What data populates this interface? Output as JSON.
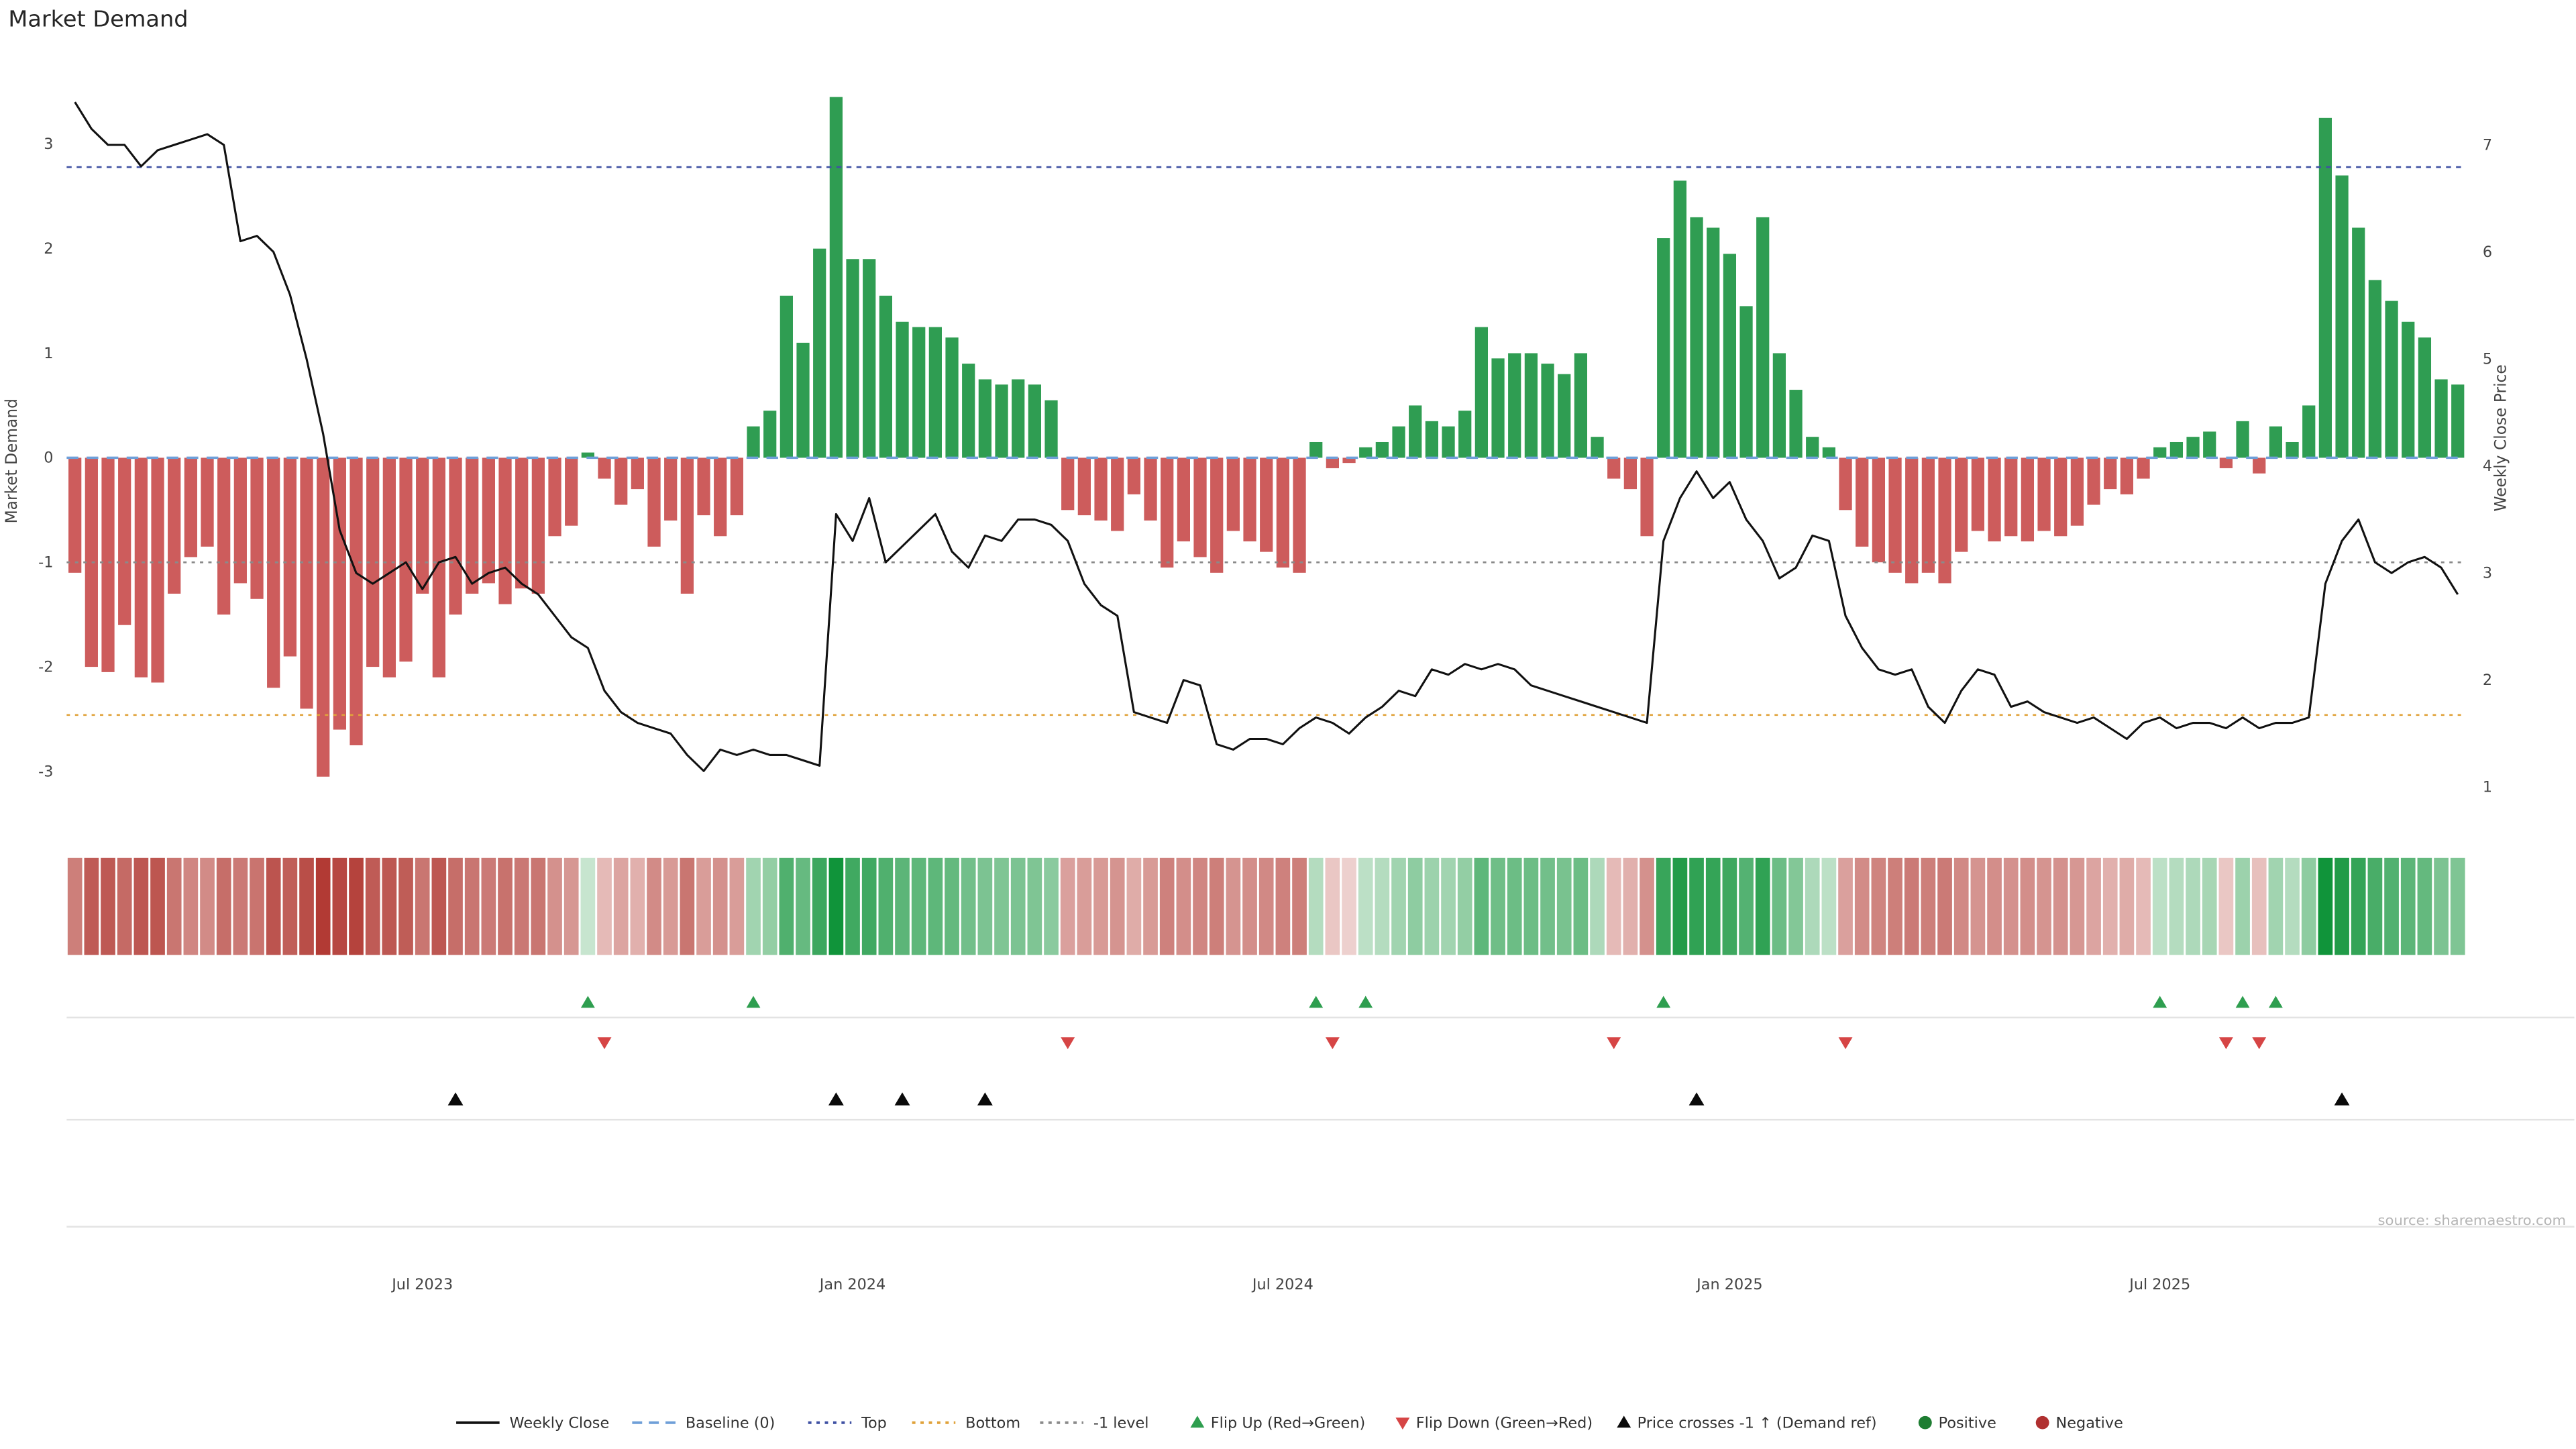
{
  "title": "Market Demand",
  "source": "source: sharemaestro.com",
  "axes": {
    "left_label": "Market Demand",
    "right_label": "Weekly Close Price",
    "left_ticks": [
      3,
      2,
      1,
      0,
      -1,
      -2,
      -3
    ],
    "right_ticks": [
      7,
      6,
      5,
      4,
      3,
      2,
      1
    ],
    "x_ticks": [
      {
        "label": "Jul 2023",
        "index": 21
      },
      {
        "label": "Jan 2024",
        "index": 47
      },
      {
        "label": "Jul 2024",
        "index": 73
      },
      {
        "label": "Jan 2025",
        "index": 100
      },
      {
        "label": "Jul 2025",
        "index": 126
      }
    ]
  },
  "colors": {
    "bar_positive": "#2f9d52",
    "bar_negative": "#cd5c5c",
    "price_line": "#111111",
    "baseline": "#6f9fd8",
    "top_level": "#3f51a3",
    "bottom_level": "#e0a23a",
    "minus1_level": "#8a8a8a",
    "flip_up": "#2e9e4f",
    "flip_down": "#d64545",
    "price_cross": "#0a0a0a",
    "positive_dot": "#1e7d32",
    "negative_dot": "#b03030",
    "grid": "#e3e3e3",
    "tick_text": "#444444",
    "heat_pos_low": [
      225,
      240,
      228
    ],
    "heat_pos_high": [
      16,
      148,
      58
    ],
    "heat_neg_low": [
      246,
      230,
      228
    ],
    "heat_neg_high": [
      176,
      54,
      48
    ]
  },
  "legend": {
    "items": [
      {
        "label": "Weekly Close",
        "type": "line",
        "color": "#111111",
        "dash": ""
      },
      {
        "label": "Baseline (0)",
        "type": "line",
        "color": "#6f9fd8",
        "dash": "6 4"
      },
      {
        "label": "Top",
        "type": "line",
        "color": "#3f51a3",
        "dash": "2 3"
      },
      {
        "label": "Bottom",
        "type": "line",
        "color": "#e0a23a",
        "dash": "2 3"
      },
      {
        "label": "-1 level",
        "type": "line",
        "color": "#8a8a8a",
        "dash": "2 3"
      },
      {
        "label": "Flip Up (Red→Green)",
        "type": "marker-up",
        "color": "#2e9e4f"
      },
      {
        "label": "Flip Down (Green→Red)",
        "type": "marker-down",
        "color": "#d64545"
      },
      {
        "label": "Price crosses -1 ↑ (Demand ref)",
        "type": "marker-up",
        "color": "#0a0a0a"
      },
      {
        "label": "Positive",
        "type": "dot",
        "color": "#1e7d32"
      },
      {
        "label": "Negative",
        "type": "dot",
        "color": "#b03030"
      }
    ]
  },
  "chart_data": {
    "type": "bar",
    "subtype": "bar+line combo with heatmap strip and event markers",
    "title": "Market Demand",
    "xlabel": "",
    "ylabel_left": "Market Demand",
    "ylabel_right": "Weekly Close Price",
    "x_unit": "week",
    "n_points": 145,
    "ylim_demand": [
      -3.5,
      3.7
    ],
    "ylim_price": [
      1,
      7.5
    ],
    "levels": {
      "baseline": 0,
      "top": 2.78,
      "bottom": -2.46,
      "minus1": -1
    },
    "demand": [
      -1.1,
      -2.0,
      -2.05,
      -1.6,
      -2.1,
      -2.15,
      -1.3,
      -0.95,
      -0.85,
      -1.5,
      -1.2,
      -1.35,
      -2.2,
      -1.9,
      -2.4,
      -3.05,
      -2.6,
      -2.75,
      -2.0,
      -2.1,
      -1.95,
      -1.3,
      -2.1,
      -1.5,
      -1.3,
      -1.2,
      -1.4,
      -1.25,
      -1.3,
      -0.75,
      -0.65,
      0.05,
      -0.2,
      -0.45,
      -0.3,
      -0.85,
      -0.6,
      -1.3,
      -0.55,
      -0.75,
      -0.55,
      0.3,
      0.45,
      1.55,
      1.1,
      2.0,
      3.45,
      1.9,
      1.9,
      1.55,
      1.3,
      1.25,
      1.25,
      1.15,
      0.9,
      0.75,
      0.7,
      0.75,
      0.7,
      0.55,
      -0.5,
      -0.55,
      -0.6,
      -0.7,
      -0.35,
      -0.6,
      -1.05,
      -0.8,
      -0.95,
      -1.1,
      -0.7,
      -0.8,
      -0.9,
      -1.05,
      -1.1,
      0.15,
      -0.1,
      -0.05,
      0.1,
      0.15,
      0.3,
      0.5,
      0.35,
      0.3,
      0.45,
      1.25,
      0.95,
      1.0,
      1.0,
      0.9,
      0.8,
      1.0,
      0.2,
      -0.2,
      -0.3,
      -0.75,
      2.1,
      2.65,
      2.3,
      2.2,
      1.95,
      1.45,
      2.3,
      1.0,
      0.65,
      0.2,
      0.1,
      -0.5,
      -0.85,
      -1.0,
      -1.1,
      -1.2,
      -1.1,
      -1.2,
      -0.9,
      -0.7,
      -0.8,
      -0.75,
      -0.8,
      -0.7,
      -0.75,
      -0.65,
      -0.45,
      -0.3,
      -0.35,
      -0.2,
      0.1,
      0.15,
      0.2,
      0.25,
      -0.1,
      0.35,
      -0.15,
      0.3,
      0.15,
      0.5,
      3.25,
      2.7,
      2.2,
      1.7,
      1.5,
      1.3,
      1.15,
      0.75,
      0.7
    ],
    "price": [
      7.4,
      7.15,
      7.0,
      7.0,
      6.8,
      6.95,
      7.0,
      7.05,
      7.1,
      7.0,
      6.1,
      6.15,
      6.0,
      5.6,
      5.0,
      4.3,
      3.4,
      3.0,
      2.9,
      3.0,
      3.1,
      2.85,
      3.1,
      3.15,
      2.9,
      3.0,
      3.05,
      2.9,
      2.8,
      2.6,
      2.4,
      2.3,
      1.9,
      1.7,
      1.6,
      1.55,
      1.5,
      1.3,
      1.15,
      1.35,
      1.3,
      1.35,
      1.3,
      1.3,
      1.25,
      1.2,
      3.55,
      3.3,
      3.7,
      3.1,
      3.25,
      3.4,
      3.55,
      3.2,
      3.05,
      3.35,
      3.3,
      3.5,
      3.5,
      3.45,
      3.3,
      2.9,
      2.7,
      2.6,
      1.7,
      1.65,
      1.6,
      2.0,
      1.95,
      1.4,
      1.35,
      1.45,
      1.45,
      1.4,
      1.55,
      1.65,
      1.6,
      1.5,
      1.65,
      1.75,
      1.9,
      1.85,
      2.1,
      2.05,
      2.15,
      2.1,
      2.15,
      2.1,
      1.95,
      1.9,
      1.85,
      1.8,
      1.75,
      1.7,
      1.65,
      1.6,
      3.3,
      3.7,
      3.95,
      3.7,
      3.85,
      3.5,
      3.3,
      2.95,
      3.05,
      3.35,
      3.3,
      2.6,
      2.3,
      2.1,
      2.05,
      2.1,
      1.75,
      1.6,
      1.9,
      2.1,
      2.05,
      1.75,
      1.8,
      1.7,
      1.65,
      1.6,
      1.65,
      1.55,
      1.45,
      1.6,
      1.65,
      1.55,
      1.6,
      1.6,
      1.55,
      1.65,
      1.55,
      1.6,
      1.6,
      1.65,
      2.9,
      3.3,
      3.5,
      3.1,
      3.0,
      3.1,
      3.15,
      3.05,
      2.8
    ],
    "markers": {
      "flip_up": [
        31,
        41,
        75,
        78,
        96,
        126,
        131,
        133
      ],
      "flip_down": [
        32,
        60,
        76,
        93,
        107,
        130,
        132
      ],
      "price_cross": [
        23,
        46,
        50,
        55,
        98,
        137
      ]
    }
  }
}
